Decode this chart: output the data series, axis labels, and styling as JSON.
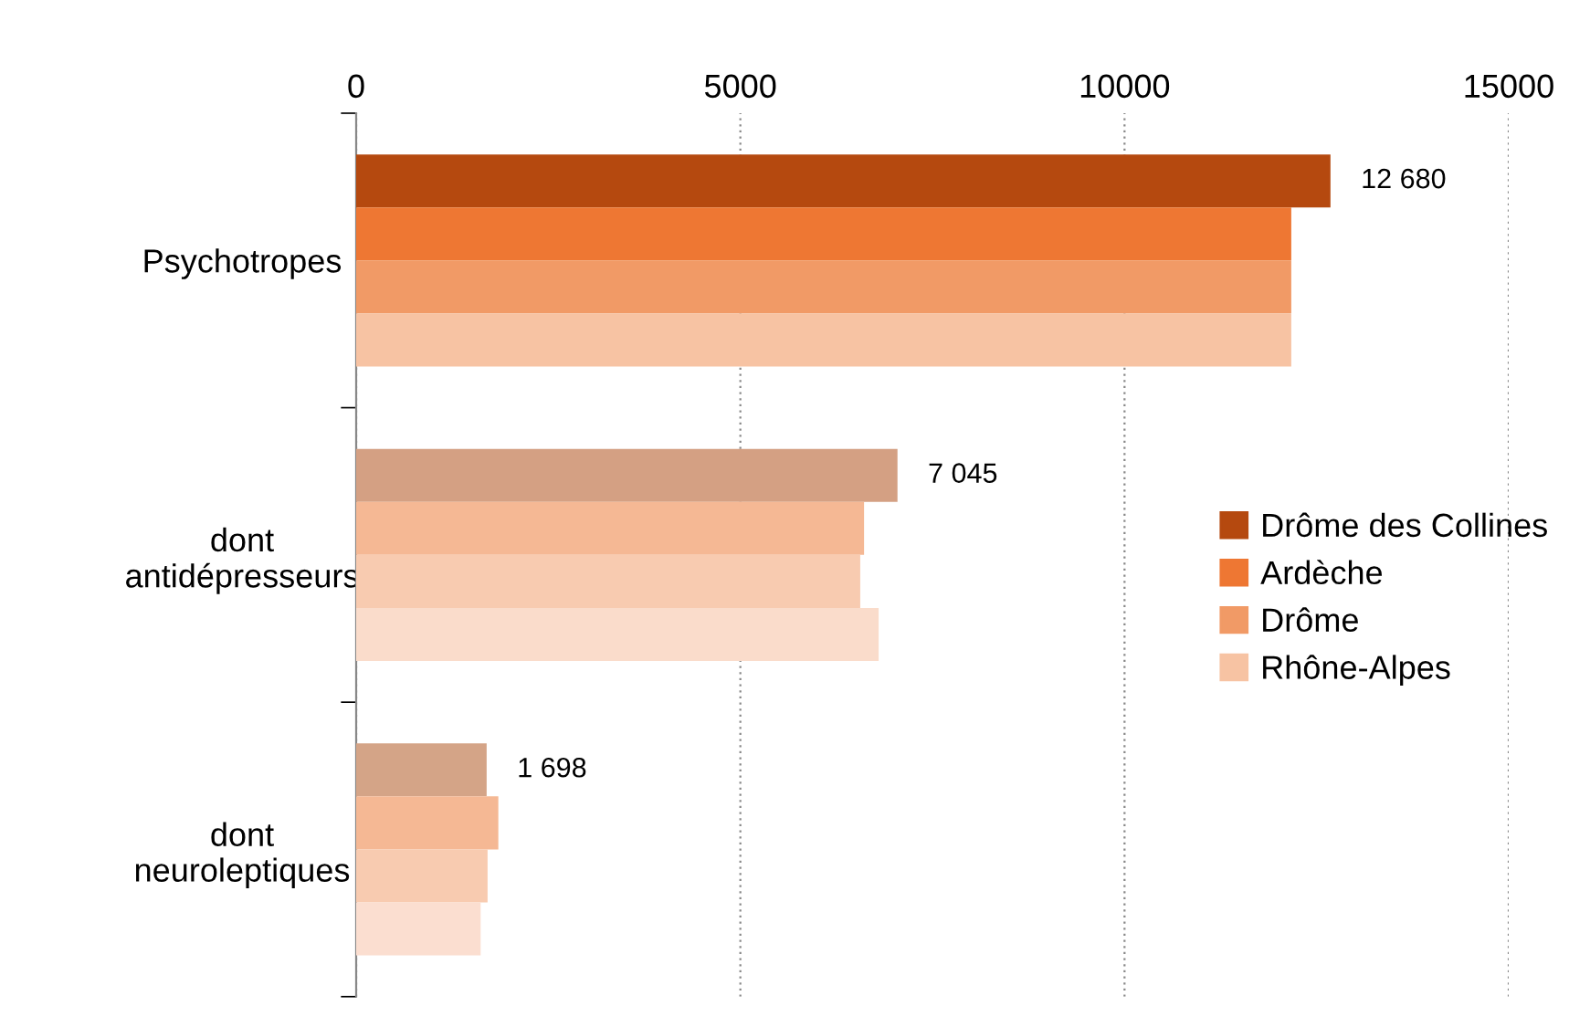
{
  "chart_data": {
    "type": "bar",
    "orientation": "horizontal",
    "categories": [
      "Psychotropes",
      "dont\nantidépresseurs",
      "dont\nneuroleptiques"
    ],
    "series": [
      {
        "name": "Drôme des Collines",
        "color": "#b5490f",
        "colors": [
          "#b5490f",
          "#d4a083",
          "#d4a487"
        ],
        "values": [
          12680,
          7045,
          1698
        ],
        "value_labels": [
          "12 680",
          "7 045",
          "1 698"
        ]
      },
      {
        "name": "Ardèche",
        "color": "#ee7733",
        "colors": [
          "#ee7733",
          "#f5b894",
          "#f5b894"
        ],
        "values": [
          12170,
          6610,
          1850
        ]
      },
      {
        "name": "Drôme",
        "color": "#f19a66",
        "colors": [
          "#f19a66",
          "#f8cbb0",
          "#f8cbb0"
        ],
        "values": [
          12170,
          6560,
          1710
        ]
      },
      {
        "name": "Rhône-Alpes",
        "color": "#f7c3a3",
        "colors": [
          "#f7c3a3",
          "#fadccb",
          "#fbded0"
        ],
        "values": [
          12170,
          6800,
          1620
        ]
      }
    ],
    "xlim": [
      0,
      15000
    ],
    "xticks": [
      0,
      5000,
      10000,
      15000
    ],
    "grid": "x",
    "legend": "right"
  }
}
